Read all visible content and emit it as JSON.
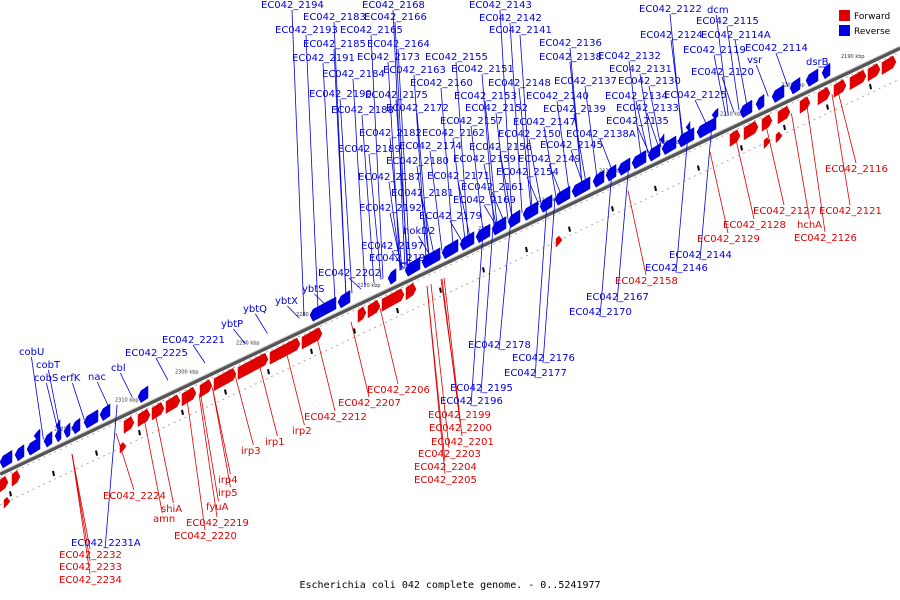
{
  "colors": {
    "forward": "#e00000",
    "reverse": "#0000e0",
    "backbone": "#777777"
  },
  "legend": [
    {
      "label": "Forward",
      "color": "#e00000"
    },
    {
      "label": "Reverse",
      "color": "#0000e0"
    }
  ],
  "caption": "Escherichia coli 042 complete genome. - 0..5241977",
  "ticks": [
    "2190 kbp",
    "2200 kbp",
    "2210 kbp",
    "2220 kbp",
    "2230 kbp",
    "2240 kbp",
    "2250 kbp",
    "2260 kbp",
    "2270 kbp",
    "2280 kbp",
    "2290 kbp",
    "2300 kbp",
    "2310 kbp",
    "2320 kbp"
  ],
  "reverse_labels": [
    "EC042_2194",
    "EC042_2168",
    "EC042_2143",
    "EC042_2122",
    "dcm",
    "EC042_2183",
    "EC042_2166",
    "EC042_2142",
    "EC042_2115",
    "EC042_2193",
    "EC042_2165",
    "EC042_2141",
    "EC042_2124",
    "EC042_2114A",
    "EC042_2185",
    "EC042_2164",
    "EC042_2136",
    "EC042_2119",
    "EC042_2114",
    "dsrB",
    "EC042_2191",
    "EC042_2173",
    "EC042_2155",
    "EC042_2138",
    "EC042_2132",
    "vsr",
    "EC042_2184",
    "EC042_2163",
    "EC042_2151",
    "EC042_2131",
    "EC042_2120",
    "EC042_2160",
    "EC042_2148",
    "EC042_2137",
    "EC042_2130",
    "EC042_2190",
    "EC042_2175",
    "EC042_2153",
    "EC042_2140",
    "EC042_2125",
    "EC042_2188",
    "EC042_2172",
    "EC042_2152",
    "EC042_2139",
    "EC042_2134",
    "EC042_2133",
    "EC042_2157",
    "EC042_2147",
    "EC042_2135",
    "EC042_2182",
    "EC042_2162",
    "EC042_2150",
    "EC042_2138A",
    "EC042_2174",
    "EC042_2156",
    "EC042_2145",
    "EC042_2189",
    "EC042_2180",
    "EC042_2159",
    "EC042_2149",
    "EC042_2171",
    "EC042_2154",
    "EC042_2187",
    "EC042_2161",
    "EC042_2181",
    "EC042_2169",
    "EC042_2192",
    "EC042_2179",
    "hokD2",
    "EC042_2197",
    "EC042_2198",
    "EC042_2144",
    "EC042_2146",
    "EC042_2202",
    "ybtS",
    "ybtX",
    "EC042_2167",
    "ybtQ",
    "EC042_2170",
    "ybtP",
    "EC042_2221",
    "EC042_2178",
    "EC042_2225",
    "cobU",
    "EC042_2176",
    "cobT",
    "cbl",
    "EC042_2177",
    "cobS",
    "erfK",
    "nac",
    "EC042_2195",
    "EC042_2196",
    "EC042_2231A"
  ],
  "forward_labels": [
    "EC042_2116",
    "EC042_2127",
    "EC042_2121",
    "EC042_2128",
    "hchA",
    "EC042_2129",
    "EC042_2126",
    "EC042_2158",
    "EC042_2206",
    "EC042_2207",
    "EC042_2212",
    "EC042_2199",
    "irp2",
    "EC042_2200",
    "irp1",
    "EC042_2201",
    "EC042_2203",
    "irp3",
    "EC042_2204",
    "EC042_2205",
    "irp4",
    "irp5",
    "EC042_2224",
    "shiA",
    "fyuA",
    "amn",
    "EC042_2219",
    "EC042_2220",
    "EC042_2232",
    "EC042_2233",
    "EC042_2234"
  ]
}
